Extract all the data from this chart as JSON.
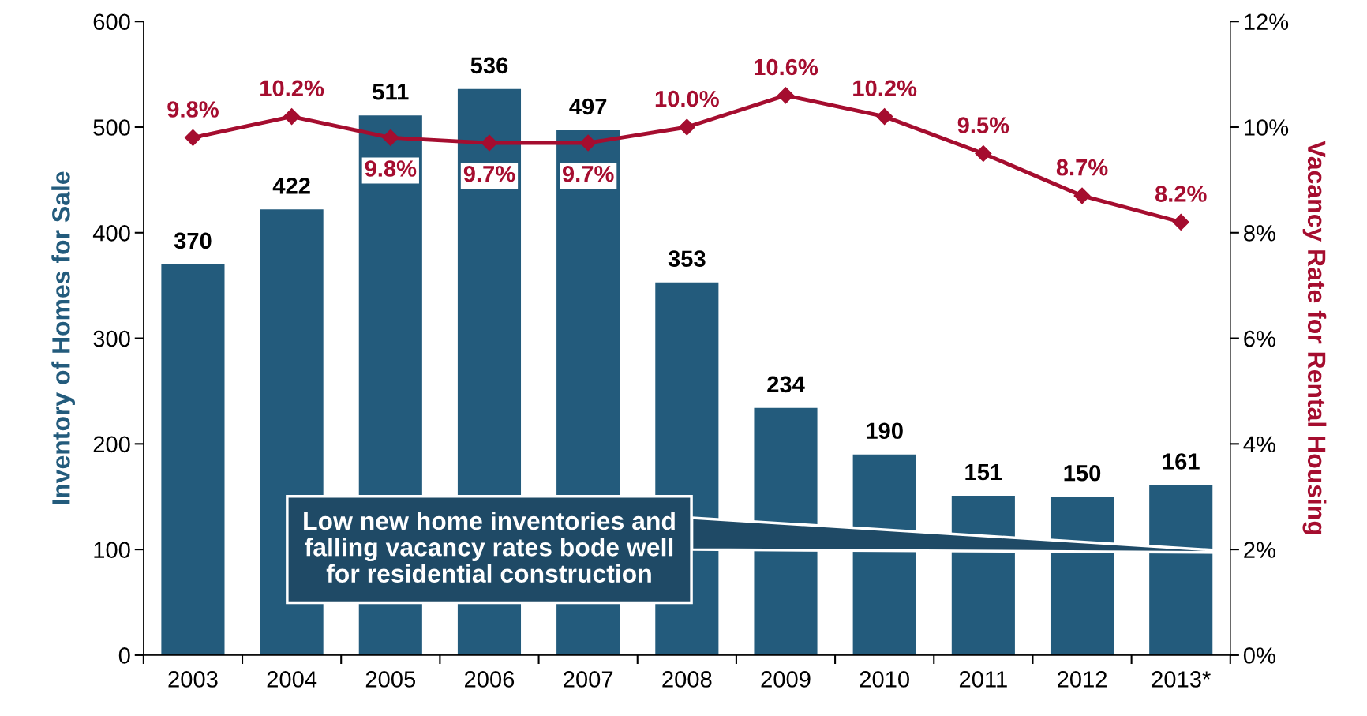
{
  "chart_data": {
    "type": "bar",
    "ylabel": "Inventory of Homes for Sale",
    "y2label": "Vacancy Rate for Rental Housing",
    "categories": [
      "2003",
      "2004",
      "2005",
      "2006",
      "2007",
      "2008",
      "2009",
      "2010",
      "2011",
      "2012",
      "2013*"
    ],
    "series": [
      {
        "color": "#235b7c",
        "values": [
          370,
          422,
          511,
          536,
          497,
          353,
          234,
          190,
          151,
          150,
          161
        ]
      },
      {
        "type": "line",
        "axis": "y2",
        "color": "#a50d2f",
        "marker": "diamond",
        "values": [
          9.8,
          10.2,
          9.8,
          9.7,
          9.7,
          10.0,
          10.6,
          10.2,
          9.5,
          8.7,
          8.2
        ],
        "value_labels": [
          "9.8%",
          "10.2%",
          "9.8%",
          "9.7%",
          "9.7%",
          "10.0%",
          "10.6%",
          "10.2%",
          "9.5%",
          "8.7%",
          "8.2%"
        ]
      }
    ],
    "data_labels": true,
    "ylim": [
      0,
      600
    ],
    "yticks": [
      0,
      100,
      200,
      300,
      400,
      500,
      600
    ],
    "y2lim": [
      0,
      12
    ],
    "y2ticks": [
      {
        "value": 0,
        "label": "0%"
      },
      {
        "value": 2,
        "label": "2%"
      },
      {
        "value": 4,
        "label": "4%"
      },
      {
        "value": 6,
        "label": "6%"
      },
      {
        "value": 8,
        "label": "8%"
      },
      {
        "value": 10,
        "label": "10%"
      },
      {
        "value": 12,
        "label": "12%"
      }
    ],
    "grid": false,
    "annotations": [
      "Low new home inventories and falling vacancy rates bode well for residential construction"
    ]
  }
}
